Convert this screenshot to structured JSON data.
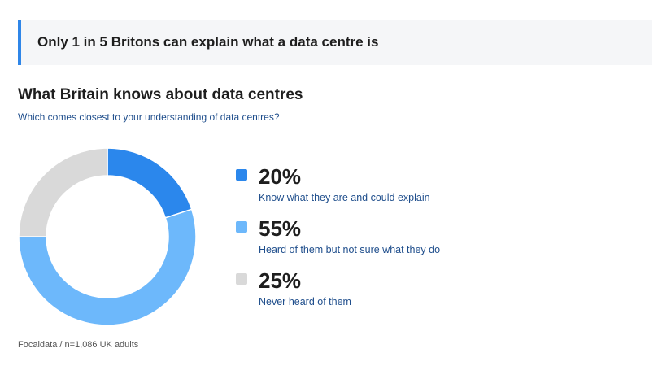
{
  "callout": {
    "text": "Only 1 in 5 Britons can explain what a data centre is"
  },
  "chart_data": {
    "type": "pie",
    "title": "What Britain knows about data centres",
    "subtitle": "Which comes closest to your understanding of data centres?",
    "slices": [
      {
        "label": "Know what they are and could explain",
        "value": 20,
        "display": "20%",
        "color": "#2b87ec"
      },
      {
        "label": "Heard of them but not sure what they do",
        "value": 55,
        "display": "55%",
        "color": "#6db8fb"
      },
      {
        "label": "Never heard of them",
        "value": 25,
        "display": "25%",
        "color": "#d9d9d9"
      }
    ],
    "donut": true,
    "legend_position": "right"
  },
  "source": "Focaldata / n=1,086 UK adults"
}
